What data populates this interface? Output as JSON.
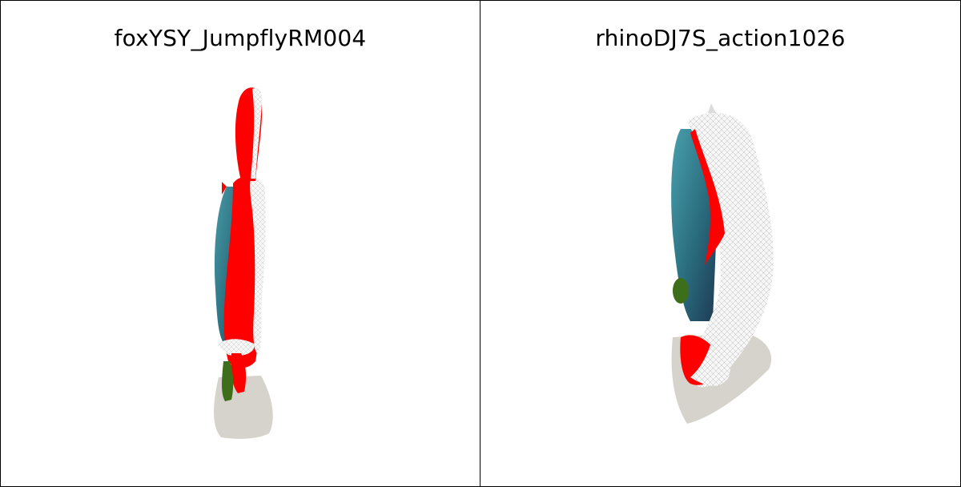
{
  "panels": [
    {
      "title": "foxYSY_JumpflyRM004"
    },
    {
      "title": "rhinoDJ7S_action1026"
    }
  ],
  "colors": {
    "shadow": "#d6d3cc",
    "teal": "#2f7f8d",
    "red": "#ff0000",
    "mesh": "#f4f4f4",
    "green": "#3d6e1a"
  }
}
